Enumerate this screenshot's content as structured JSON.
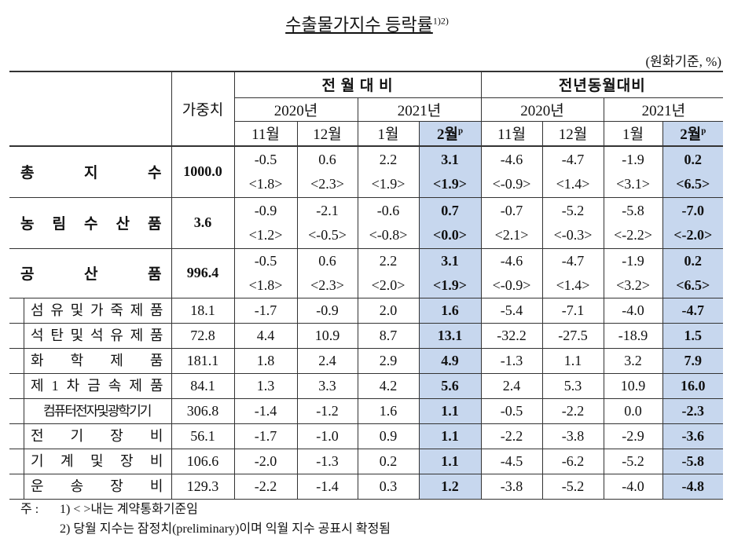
{
  "title": "수출물가지수 등락률",
  "title_note": "1)2)",
  "unit": "(원화기준, %)",
  "header": {
    "weight": "가중치",
    "groups": [
      "전 월 대 비",
      "전년동월대비"
    ],
    "years": [
      "2020년",
      "2021년",
      "2020년",
      "2021년"
    ],
    "months": [
      "11월",
      "12월",
      "1월",
      "2월",
      "11월",
      "12월",
      "1월",
      "2월"
    ],
    "prelim_mark": "p"
  },
  "main_rows": [
    {
      "label": "총 지 수",
      "weight": "1000.0",
      "values": [
        "-0.5",
        "0.6",
        "2.2",
        "3.1",
        "-4.6",
        "-4.7",
        "-1.9",
        "0.2"
      ],
      "contract": [
        "<1.8>",
        "<2.3>",
        "<1.9>",
        "<1.9>",
        "<-0.9>",
        "<1.4>",
        "<3.1>",
        "<6.5>"
      ]
    },
    {
      "label": "농 림 수 산 품",
      "weight": "3.6",
      "values": [
        "-0.9",
        "-2.1",
        "-0.6",
        "0.7",
        "-0.7",
        "-5.2",
        "-5.8",
        "-7.0"
      ],
      "contract": [
        "<1.2>",
        "<-0.5>",
        "<-0.8>",
        "<0.0>",
        "<2.1>",
        "<-0.3>",
        "<-2.2>",
        "<-2.0>"
      ]
    },
    {
      "label": "공 산 품",
      "weight": "996.4",
      "values": [
        "-0.5",
        "0.6",
        "2.2",
        "3.1",
        "-4.6",
        "-4.7",
        "-1.9",
        "0.2"
      ],
      "contract": [
        "<1.8>",
        "<2.3>",
        "<2.0>",
        "<1.9>",
        "<-0.9>",
        "<1.4>",
        "<3.2>",
        "<6.5>"
      ]
    }
  ],
  "sub_rows": [
    {
      "label": "섬 유 및 가 죽 제 품",
      "weight": "18.1",
      "values": [
        "-1.7",
        "-0.9",
        "2.0",
        "1.6",
        "-5.4",
        "-7.1",
        "-4.0",
        "-4.7"
      ]
    },
    {
      "label": "석 탄 및 석 유 제 품",
      "weight": "72.8",
      "values": [
        "4.4",
        "10.9",
        "8.7",
        "13.1",
        "-32.2",
        "-27.5",
        "-18.9",
        "1.5"
      ]
    },
    {
      "label": "화 학 제 품",
      "weight": "181.1",
      "values": [
        "1.8",
        "2.4",
        "2.9",
        "4.9",
        "-1.3",
        "1.1",
        "3.2",
        "7.9"
      ]
    },
    {
      "label": "제 1 차 금 속 제 품",
      "weight": "84.1",
      "values": [
        "1.3",
        "3.3",
        "4.2",
        "5.6",
        "2.4",
        "5.3",
        "10.9",
        "16.0"
      ]
    },
    {
      "label": "컴퓨터전자및광학기기",
      "weight": "306.8",
      "values": [
        "-1.4",
        "-1.2",
        "1.6",
        "1.1",
        "-0.5",
        "-2.2",
        "0.0",
        "-2.3"
      ]
    },
    {
      "label": "전 기 장 비",
      "weight": "56.1",
      "values": [
        "-1.7",
        "-1.0",
        "0.9",
        "1.1",
        "-2.2",
        "-3.8",
        "-2.9",
        "-3.6"
      ]
    },
    {
      "label": "기 계 및 장 비",
      "weight": "106.6",
      "values": [
        "-2.0",
        "-1.3",
        "0.2",
        "1.1",
        "-4.5",
        "-6.2",
        "-5.2",
        "-5.8"
      ]
    },
    {
      "label": "운 송 장 비",
      "weight": "129.3",
      "values": [
        "-2.2",
        "-1.4",
        "0.3",
        "1.2",
        "-3.8",
        "-5.2",
        "-4.0",
        "-4.8"
      ]
    }
  ],
  "notes": {
    "lead": "주 :",
    "items": [
      "1) < >내는 계약통화기준임",
      "2) 당월 지수는 잠정치(preliminary)이며 익월 지수 공표시 확정됨"
    ]
  }
}
